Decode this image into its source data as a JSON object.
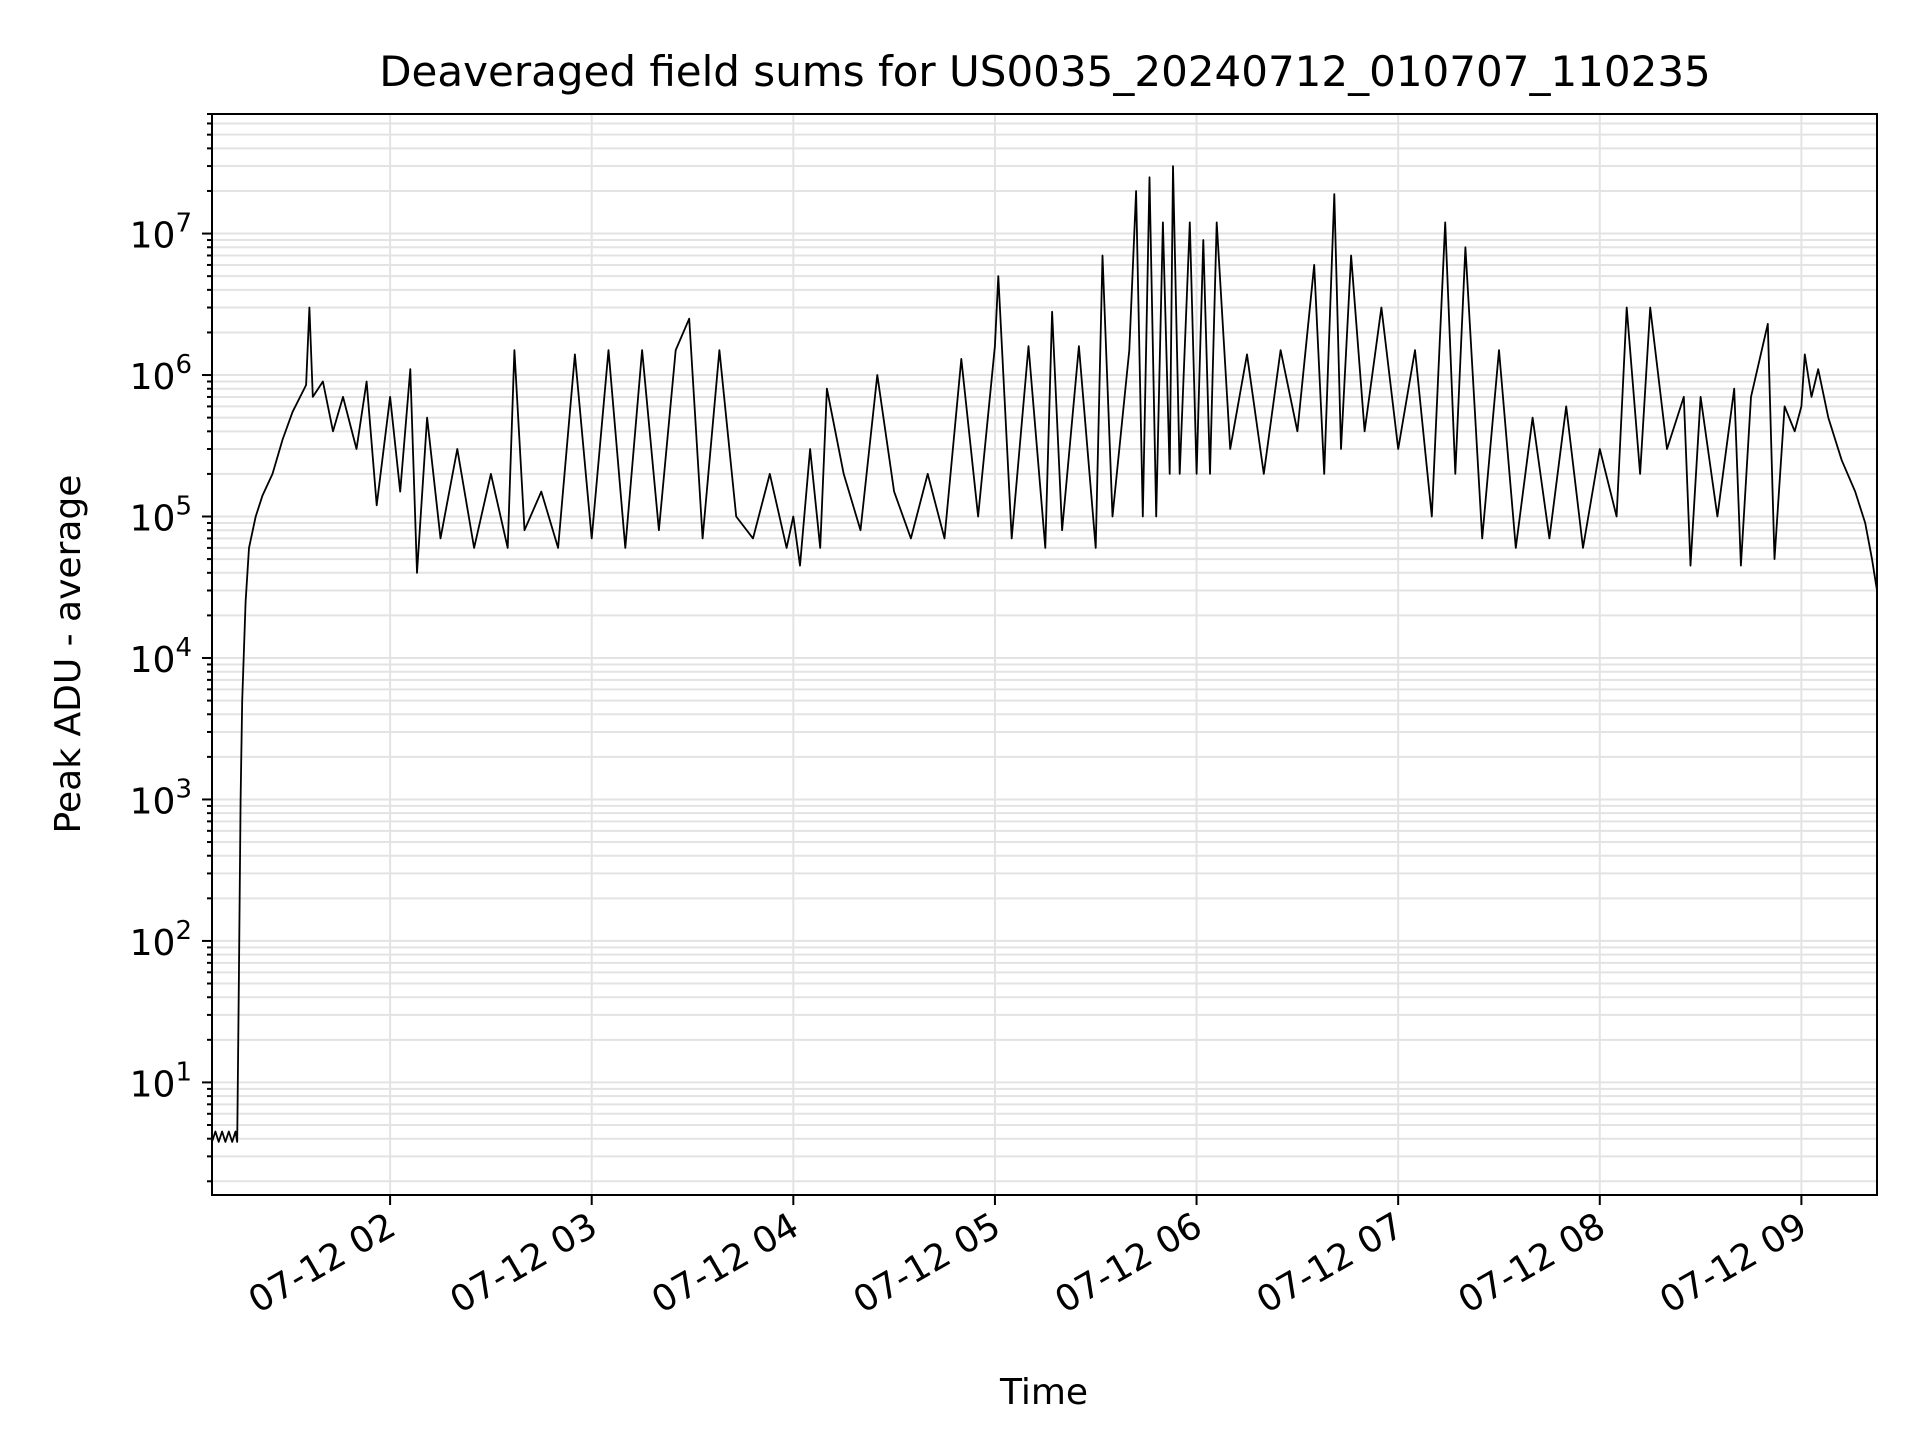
{
  "chart_data": {
    "type": "line",
    "title": "Deaveraged field sums for US0035_20240712_010707_110235",
    "xlabel": "Time",
    "ylabel": "Peak ADU - average",
    "yscale": "log",
    "grid": true,
    "line_color": "#000000",
    "xlim": [
      "2024-07-12 01:07:00",
      "2024-07-12 09:22:30"
    ],
    "ylim": [
      1.6,
      70000000
    ],
    "x_ticks": [
      {
        "t": "2024-07-12 02:00",
        "label": "07-12 02"
      },
      {
        "t": "2024-07-12 03:00",
        "label": "07-12 03"
      },
      {
        "t": "2024-07-12 04:00",
        "label": "07-12 04"
      },
      {
        "t": "2024-07-12 05:00",
        "label": "07-12 05"
      },
      {
        "t": "2024-07-12 06:00",
        "label": "07-12 06"
      },
      {
        "t": "2024-07-12 07:00",
        "label": "07-12 07"
      },
      {
        "t": "2024-07-12 08:00",
        "label": "07-12 08"
      },
      {
        "t": "2024-07-12 09:00",
        "label": "07-12 09"
      }
    ],
    "y_ticks": [
      {
        "value": 10,
        "base": "10",
        "exp": "1"
      },
      {
        "value": 100,
        "base": "10",
        "exp": "2"
      },
      {
        "value": 1000,
        "base": "10",
        "exp": "3"
      },
      {
        "value": 10000,
        "base": "10",
        "exp": "4"
      },
      {
        "value": 100000,
        "base": "10",
        "exp": "5"
      },
      {
        "value": 1000000,
        "base": "10",
        "exp": "6"
      },
      {
        "value": 10000000,
        "base": "10",
        "exp": "7"
      }
    ],
    "series": [
      {
        "points": [
          [
            "2024-07-12 01:07:00",
            3.8
          ],
          [
            "2024-07-12 01:08:00",
            4.5
          ],
          [
            "2024-07-12 01:09:00",
            3.8
          ],
          [
            "2024-07-12 01:10:00",
            4.5
          ],
          [
            "2024-07-12 01:11:00",
            3.8
          ],
          [
            "2024-07-12 01:12:00",
            4.5
          ],
          [
            "2024-07-12 01:13:00",
            3.8
          ],
          [
            "2024-07-12 01:14:00",
            4.5
          ],
          [
            "2024-07-12 01:14:30",
            3.8
          ],
          [
            "2024-07-12 01:15:00",
            55
          ],
          [
            "2024-07-12 01:15:30",
            1000
          ],
          [
            "2024-07-12 01:16:00",
            5000
          ],
          [
            "2024-07-12 01:17:00",
            25000
          ],
          [
            "2024-07-12 01:18:00",
            60000
          ],
          [
            "2024-07-12 01:20:00",
            100000
          ],
          [
            "2024-07-12 01:22:00",
            140000
          ],
          [
            "2024-07-12 01:25:00",
            200000
          ],
          [
            "2024-07-12 01:28:00",
            350000
          ],
          [
            "2024-07-12 01:31:00",
            550000
          ],
          [
            "2024-07-12 01:35:00",
            850000
          ],
          [
            "2024-07-12 01:36:00",
            3000000
          ],
          [
            "2024-07-12 01:37:00",
            700000
          ],
          [
            "2024-07-12 01:40:00",
            900000
          ],
          [
            "2024-07-12 01:43:00",
            400000
          ],
          [
            "2024-07-12 01:46:00",
            700000
          ],
          [
            "2024-07-12 01:50:00",
            300000
          ],
          [
            "2024-07-12 01:53:00",
            900000
          ],
          [
            "2024-07-12 01:56:00",
            120000
          ],
          [
            "2024-07-12 02:00:00",
            700000
          ],
          [
            "2024-07-12 02:03:00",
            150000
          ],
          [
            "2024-07-12 02:06:00",
            1100000
          ],
          [
            "2024-07-12 02:08:00",
            40000
          ],
          [
            "2024-07-12 02:11:00",
            500000
          ],
          [
            "2024-07-12 02:15:00",
            70000
          ],
          [
            "2024-07-12 02:20:00",
            300000
          ],
          [
            "2024-07-12 02:25:00",
            60000
          ],
          [
            "2024-07-12 02:30:00",
            200000
          ],
          [
            "2024-07-12 02:35:00",
            60000
          ],
          [
            "2024-07-12 02:37:00",
            1500000
          ],
          [
            "2024-07-12 02:40:00",
            80000
          ],
          [
            "2024-07-12 02:45:00",
            150000
          ],
          [
            "2024-07-12 02:50:00",
            60000
          ],
          [
            "2024-07-12 02:55:00",
            1400000
          ],
          [
            "2024-07-12 03:00:00",
            70000
          ],
          [
            "2024-07-12 03:05:00",
            1500000
          ],
          [
            "2024-07-12 03:10:00",
            60000
          ],
          [
            "2024-07-12 03:15:00",
            1500000
          ],
          [
            "2024-07-12 03:20:00",
            80000
          ],
          [
            "2024-07-12 03:25:00",
            1500000
          ],
          [
            "2024-07-12 03:29:00",
            2500000
          ],
          [
            "2024-07-12 03:33:00",
            70000
          ],
          [
            "2024-07-12 03:38:00",
            1500000
          ],
          [
            "2024-07-12 03:43:00",
            100000
          ],
          [
            "2024-07-12 03:48:00",
            70000
          ],
          [
            "2024-07-12 03:53:00",
            200000
          ],
          [
            "2024-07-12 03:58:00",
            60000
          ],
          [
            "2024-07-12 04:00:00",
            100000
          ],
          [
            "2024-07-12 04:02:00",
            45000
          ],
          [
            "2024-07-12 04:05:00",
            300000
          ],
          [
            "2024-07-12 04:08:00",
            60000
          ],
          [
            "2024-07-12 04:10:00",
            800000
          ],
          [
            "2024-07-12 04:15:00",
            200000
          ],
          [
            "2024-07-12 04:20:00",
            80000
          ],
          [
            "2024-07-12 04:25:00",
            1000000
          ],
          [
            "2024-07-12 04:30:00",
            150000
          ],
          [
            "2024-07-12 04:35:00",
            70000
          ],
          [
            "2024-07-12 04:40:00",
            200000
          ],
          [
            "2024-07-12 04:45:00",
            70000
          ],
          [
            "2024-07-12 04:50:00",
            1300000
          ],
          [
            "2024-07-12 04:55:00",
            100000
          ],
          [
            "2024-07-12 05:00:00",
            1600000
          ],
          [
            "2024-07-12 05:01:00",
            5000000
          ],
          [
            "2024-07-12 05:05:00",
            70000
          ],
          [
            "2024-07-12 05:10:00",
            1600000
          ],
          [
            "2024-07-12 05:15:00",
            60000
          ],
          [
            "2024-07-12 05:17:00",
            2800000
          ],
          [
            "2024-07-12 05:20:00",
            80000
          ],
          [
            "2024-07-12 05:25:00",
            1600000
          ],
          [
            "2024-07-12 05:30:00",
            60000
          ],
          [
            "2024-07-12 05:32:00",
            7000000
          ],
          [
            "2024-07-12 05:35:00",
            100000
          ],
          [
            "2024-07-12 05:40:00",
            1500000
          ],
          [
            "2024-07-12 05:42:00",
            20000000
          ],
          [
            "2024-07-12 05:44:00",
            100000
          ],
          [
            "2024-07-12 05:46:00",
            25000000
          ],
          [
            "2024-07-12 05:48:00",
            100000
          ],
          [
            "2024-07-12 05:50:00",
            12000000
          ],
          [
            "2024-07-12 05:52:00",
            200000
          ],
          [
            "2024-07-12 05:53:00",
            30000000
          ],
          [
            "2024-07-12 05:55:00",
            200000
          ],
          [
            "2024-07-12 05:58:00",
            12000000
          ],
          [
            "2024-07-12 06:00:00",
            200000
          ],
          [
            "2024-07-12 06:02:00",
            9000000
          ],
          [
            "2024-07-12 06:04:00",
            200000
          ],
          [
            "2024-07-12 06:06:00",
            12000000
          ],
          [
            "2024-07-12 06:10:00",
            300000
          ],
          [
            "2024-07-12 06:15:00",
            1400000
          ],
          [
            "2024-07-12 06:20:00",
            200000
          ],
          [
            "2024-07-12 06:25:00",
            1500000
          ],
          [
            "2024-07-12 06:30:00",
            400000
          ],
          [
            "2024-07-12 06:35:00",
            6000000
          ],
          [
            "2024-07-12 06:38:00",
            200000
          ],
          [
            "2024-07-12 06:41:00",
            19000000
          ],
          [
            "2024-07-12 06:43:00",
            300000
          ],
          [
            "2024-07-12 06:46:00",
            7000000
          ],
          [
            "2024-07-12 06:50:00",
            400000
          ],
          [
            "2024-07-12 06:55:00",
            3000000
          ],
          [
            "2024-07-12 07:00:00",
            300000
          ],
          [
            "2024-07-12 07:05:00",
            1500000
          ],
          [
            "2024-07-12 07:10:00",
            100000
          ],
          [
            "2024-07-12 07:14:00",
            12000000
          ],
          [
            "2024-07-12 07:17:00",
            200000
          ],
          [
            "2024-07-12 07:20:00",
            8000000
          ],
          [
            "2024-07-12 07:25:00",
            70000
          ],
          [
            "2024-07-12 07:30:00",
            1500000
          ],
          [
            "2024-07-12 07:35:00",
            60000
          ],
          [
            "2024-07-12 07:40:00",
            500000
          ],
          [
            "2024-07-12 07:45:00",
            70000
          ],
          [
            "2024-07-12 07:50:00",
            600000
          ],
          [
            "2024-07-12 07:55:00",
            60000
          ],
          [
            "2024-07-12 08:00:00",
            300000
          ],
          [
            "2024-07-12 08:05:00",
            100000
          ],
          [
            "2024-07-12 08:08:00",
            3000000
          ],
          [
            "2024-07-12 08:12:00",
            200000
          ],
          [
            "2024-07-12 08:15:00",
            3000000
          ],
          [
            "2024-07-12 08:20:00",
            300000
          ],
          [
            "2024-07-12 08:25:00",
            700000
          ],
          [
            "2024-07-12 08:27:00",
            45000
          ],
          [
            "2024-07-12 08:30:00",
            700000
          ],
          [
            "2024-07-12 08:35:00",
            100000
          ],
          [
            "2024-07-12 08:40:00",
            800000
          ],
          [
            "2024-07-12 08:42:00",
            45000
          ],
          [
            "2024-07-12 08:45:00",
            700000
          ],
          [
            "2024-07-12 08:50:00",
            2300000
          ],
          [
            "2024-07-12 08:52:00",
            50000
          ],
          [
            "2024-07-12 08:55:00",
            600000
          ],
          [
            "2024-07-12 08:58:00",
            400000
          ],
          [
            "2024-07-12 09:00:00",
            600000
          ],
          [
            "2024-07-12 09:01:00",
            1400000
          ],
          [
            "2024-07-12 09:03:00",
            700000
          ],
          [
            "2024-07-12 09:05:00",
            1100000
          ],
          [
            "2024-07-12 09:08:00",
            500000
          ],
          [
            "2024-07-12 09:12:00",
            250000
          ],
          [
            "2024-07-12 09:16:00",
            150000
          ],
          [
            "2024-07-12 09:19:00",
            90000
          ],
          [
            "2024-07-12 09:21:00",
            50000
          ],
          [
            "2024-07-12 09:22:30",
            30000
          ]
        ]
      }
    ]
  }
}
